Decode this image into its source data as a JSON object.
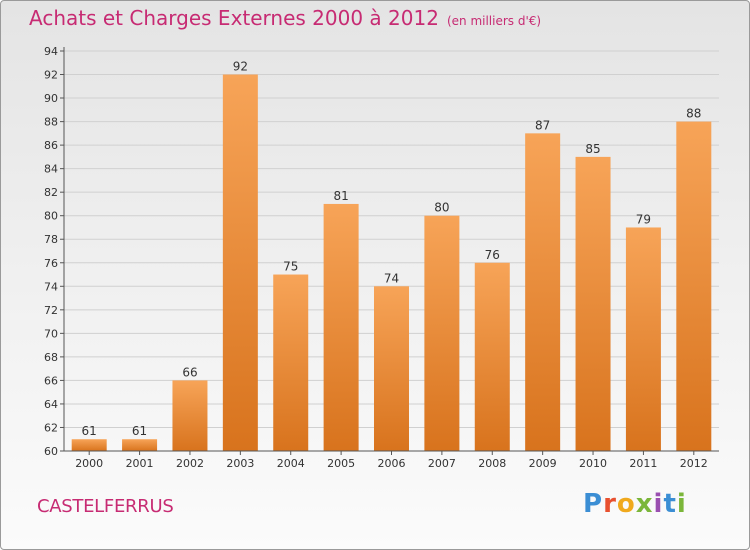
{
  "header": {
    "title": "Achats et Charges Externes 2000 à 2012",
    "unit_note": "(en milliers d'€)"
  },
  "footer": {
    "commune": "CASTELFERRUS",
    "logo_text": "Proxiti"
  },
  "colors": {
    "title": "#c72b73",
    "bar_top": "#f7a458",
    "bar_bottom": "#d8731d",
    "grid": "#d0d0d0"
  },
  "chart_data": {
    "type": "bar",
    "categories": [
      "2000",
      "2001",
      "2002",
      "2003",
      "2004",
      "2005",
      "2006",
      "2007",
      "2008",
      "2009",
      "2010",
      "2011",
      "2012"
    ],
    "values": [
      61,
      61,
      66,
      92,
      75,
      81,
      74,
      80,
      76,
      87,
      85,
      79,
      88
    ],
    "ylim": [
      60,
      94
    ],
    "ytick_step": 2,
    "grid": true,
    "title": "Achats et Charges Externes 2000 à 2012",
    "xlabel": "",
    "ylabel": ""
  }
}
